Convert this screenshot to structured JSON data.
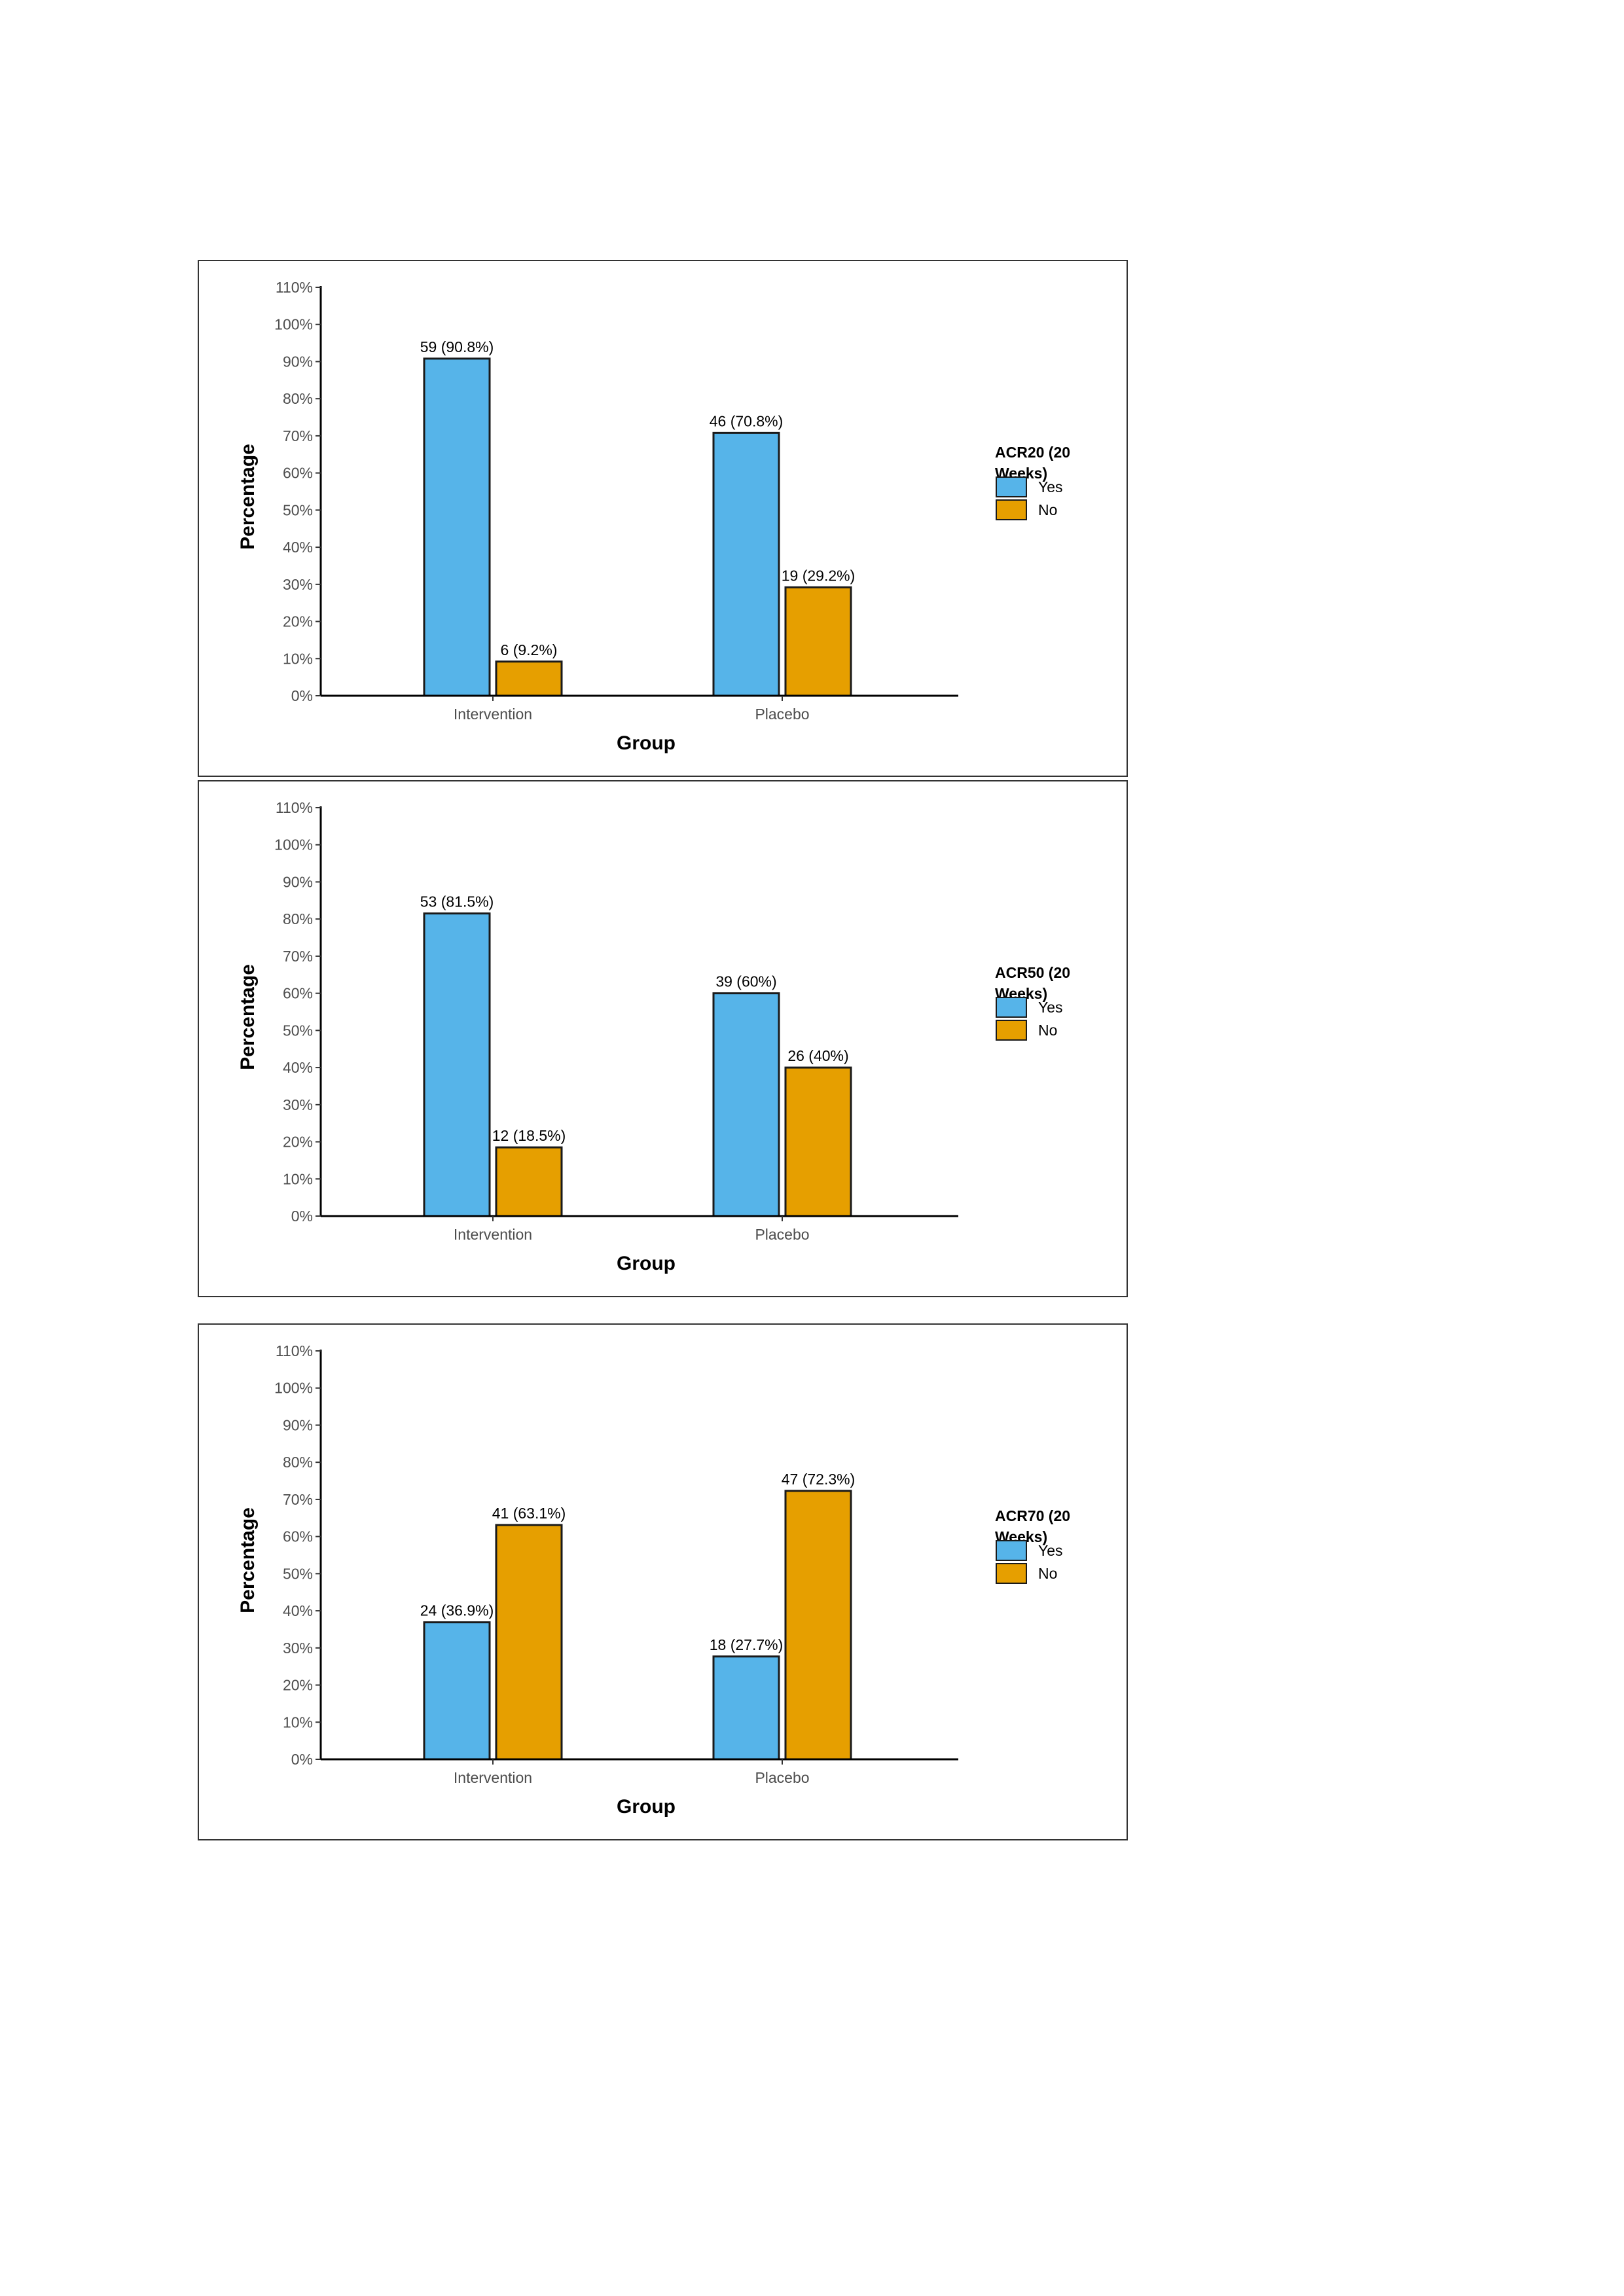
{
  "colors": {
    "yes": "#56B4E9",
    "no": "#E69F00",
    "outline": "#1a1a1a"
  },
  "chart_data": [
    {
      "type": "bar",
      "xlabel": "Group",
      "ylabel": "Percentage",
      "ylim": [
        0,
        110
      ],
      "yticks": [
        "0%",
        "10%",
        "20%",
        "30%",
        "40%",
        "50%",
        "60%",
        "70%",
        "80%",
        "90%",
        "100%",
        "110%"
      ],
      "categories": [
        "Intervention",
        "Placebo"
      ],
      "legend_title": [
        "ACR20 (20",
        "Weeks)"
      ],
      "legend_position": "right",
      "series": [
        {
          "name": "Yes",
          "values": [
            90.8,
            70.8
          ],
          "labels": [
            "59 (90.8%)",
            "46 (70.8%)"
          ]
        },
        {
          "name": "No",
          "values": [
            9.2,
            29.2
          ],
          "labels": [
            "6 (9.2%)",
            "19 (29.2%)"
          ]
        }
      ]
    },
    {
      "type": "bar",
      "xlabel": "Group",
      "ylabel": "Percentage",
      "ylim": [
        0,
        110
      ],
      "yticks": [
        "0%",
        "10%",
        "20%",
        "30%",
        "40%",
        "50%",
        "60%",
        "70%",
        "80%",
        "90%",
        "100%",
        "110%"
      ],
      "categories": [
        "Intervention",
        "Placebo"
      ],
      "legend_title": [
        "ACR50 (20",
        "Weeks)"
      ],
      "legend_position": "right",
      "series": [
        {
          "name": "Yes",
          "values": [
            81.5,
            60
          ],
          "labels": [
            "53 (81.5%)",
            "39 (60%)"
          ]
        },
        {
          "name": "No",
          "values": [
            18.5,
            40
          ],
          "labels": [
            "12 (18.5%)",
            "26 (40%)"
          ]
        }
      ]
    },
    {
      "type": "bar",
      "xlabel": "Group",
      "ylabel": "Percentage",
      "ylim": [
        0,
        110
      ],
      "yticks": [
        "0%",
        "10%",
        "20%",
        "30%",
        "40%",
        "50%",
        "60%",
        "70%",
        "80%",
        "90%",
        "100%",
        "110%"
      ],
      "categories": [
        "Intervention",
        "Placebo"
      ],
      "legend_title": [
        "ACR70 (20",
        "Weeks)"
      ],
      "legend_position": "right",
      "series": [
        {
          "name": "Yes",
          "values": [
            36.9,
            27.7
          ],
          "labels": [
            "24 (36.9%)",
            "18 (27.7%)"
          ]
        },
        {
          "name": "No",
          "values": [
            63.1,
            72.3
          ],
          "labels": [
            "41 (63.1%)",
            "47 (72.3%)"
          ]
        }
      ]
    }
  ]
}
